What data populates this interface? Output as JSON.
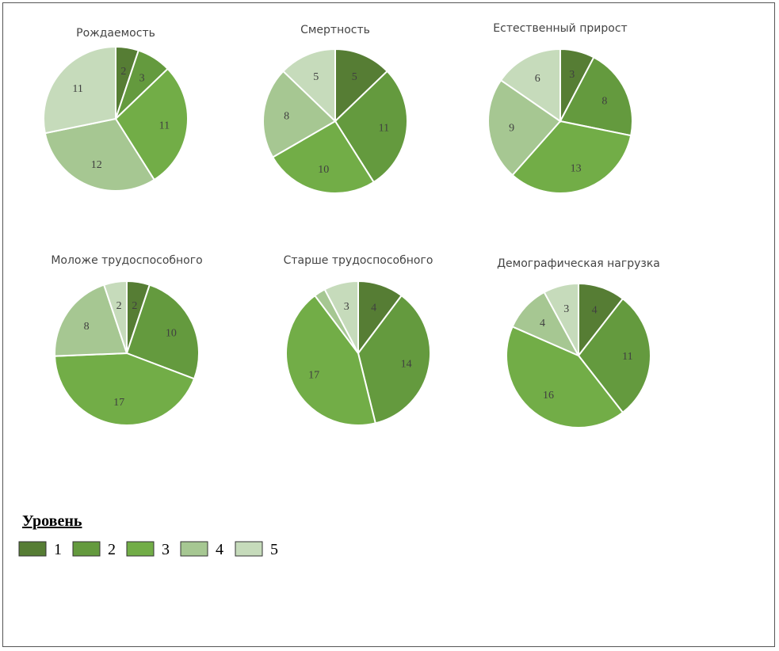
{
  "colors": {
    "level_1": "#567d34",
    "level_2": "#649a3e",
    "level_3": "#72ad47",
    "level_4": "#a6c792",
    "level_5": "#c6dbbb"
  },
  "chart_data": [
    {
      "type": "pie",
      "title": "Рождаемость",
      "categories": [
        "1",
        "2",
        "3",
        "4",
        "5"
      ],
      "values": [
        2,
        3,
        11,
        12,
        11
      ]
    },
    {
      "type": "pie",
      "title": "Смертность",
      "categories": [
        "1",
        "2",
        "3",
        "4",
        "5"
      ],
      "values": [
        5,
        11,
        10,
        8,
        5
      ]
    },
    {
      "type": "pie",
      "title": "Естественный прирост",
      "categories": [
        "1",
        "2",
        "3",
        "4",
        "5"
      ],
      "values": [
        3,
        8,
        13,
        9,
        6
      ]
    },
    {
      "type": "pie",
      "title": "Моложе трудоспособного",
      "categories": [
        "1",
        "2",
        "3",
        "4",
        "5"
      ],
      "values": [
        2,
        10,
        17,
        8,
        2
      ]
    },
    {
      "type": "pie",
      "title": "Старше трудоспособного",
      "categories": [
        "1",
        "2",
        "3",
        "4",
        "5"
      ],
      "values": [
        4,
        14,
        17,
        1,
        3
      ],
      "hidden_labels": [
        3
      ]
    },
    {
      "type": "pie",
      "title": "Демографическая нагрузка",
      "categories": [
        "1",
        "2",
        "3",
        "4",
        "5"
      ],
      "values": [
        4,
        11,
        16,
        4,
        3
      ]
    }
  ],
  "legend": {
    "title": "Уровень",
    "items": [
      "1",
      "2",
      "3",
      "4",
      "5"
    ]
  }
}
